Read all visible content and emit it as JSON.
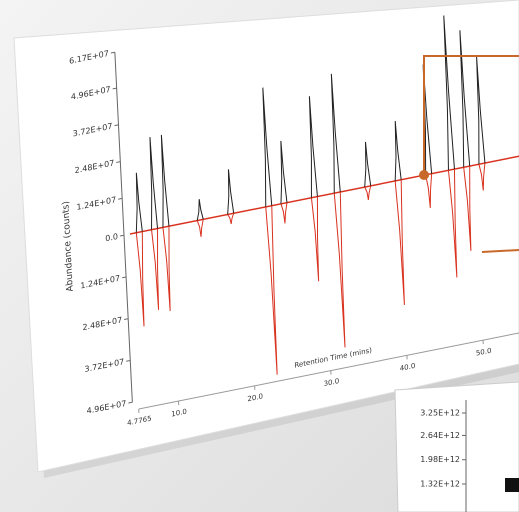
{
  "chart_data": [
    {
      "type": "mirror",
      "y_label": "Abundance (counts)",
      "x_label": "Retention Time (mins)",
      "x": [
        6.0,
        8.0,
        9.5,
        14,
        18,
        23,
        25,
        29,
        32,
        36,
        40,
        44,
        47,
        49,
        51
      ],
      "series": [
        {
          "color": "#222222",
          "values": [
            20000000,
            31000000,
            31000000,
            7000000,
            15000000,
            40000000,
            21000000,
            34000000,
            40000000,
            15000000,
            20000000,
            37000000,
            52000000,
            46000000,
            36000000
          ]
        },
        {
          "color": "#d9321f",
          "mirrored": true,
          "values": [
            28000000,
            24000000,
            25000000,
            5000000,
            3000000,
            50000000,
            6000000,
            25000000,
            46000000,
            4000000,
            37000000,
            10000000,
            32000000,
            25000000,
            8000000
          ]
        }
      ],
      "xlim": [
        4.7765,
        56
      ],
      "xticks": [
        {
          "value": 4.7765,
          "label": "4.7765"
        },
        {
          "value": 10,
          "label": "10.0"
        },
        {
          "value": 20,
          "label": "20.0"
        },
        {
          "value": 30,
          "label": "30.0"
        },
        {
          "value": 40,
          "label": "40.0"
        },
        {
          "value": 50,
          "label": "50.0"
        }
      ],
      "ylim": [
        0,
        61700000
      ],
      "yticks": [
        {
          "value": 61700000,
          "label": "6.17E+07"
        },
        {
          "value": 49600000,
          "label": "4.96E+07"
        },
        {
          "value": 37200000,
          "label": "3.72E+07"
        },
        {
          "value": 24800000,
          "label": "2.48E+07"
        },
        {
          "value": 12400000,
          "label": "1.24E+07"
        },
        {
          "value": 0,
          "label": "0.0"
        }
      ],
      "ylim_mirror": [
        0,
        49600000
      ],
      "yticks_mirror": [
        {
          "value": 12400000,
          "label": "1.24E+07"
        },
        {
          "value": 24800000,
          "label": "2.48E+07"
        },
        {
          "value": 37200000,
          "label": "3.72E+07"
        },
        {
          "value": 49600000,
          "label": "4.96E+07"
        }
      ]
    },
    {
      "type": "line",
      "ylim": [
        1320000000000,
        3250000000000
      ],
      "yticks": [
        {
          "value": 3250000000000,
          "label": "3.25E+12"
        },
        {
          "value": 2640000000000,
          "label": "2.64E+12"
        },
        {
          "value": 1980000000000,
          "label": "1.98E+12"
        },
        {
          "value": 1320000000000,
          "label": "1.32E+12"
        }
      ]
    }
  ]
}
